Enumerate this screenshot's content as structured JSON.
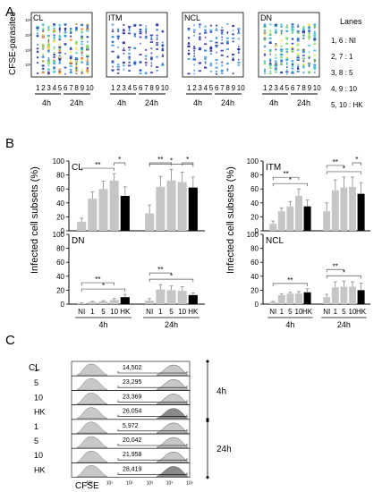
{
  "panel_a": {
    "letter": "A",
    "yaxis_label": "CFSE-parasites",
    "plots": [
      {
        "name": "CL"
      },
      {
        "name": "ITM"
      },
      {
        "name": "NCL"
      },
      {
        "name": "DN"
      }
    ],
    "lane_numbers": [
      "1",
      "2",
      "3",
      "4",
      "5",
      "6",
      "7",
      "8",
      "9",
      "10"
    ],
    "time_groups": [
      "4h",
      "24h"
    ],
    "lanes_title": "Lanes",
    "lanes_legend": [
      "1, 6 : NI",
      "2, 7 : 1",
      "3, 8 : 5",
      "4, 9 : 10",
      "5, 10 : HK"
    ],
    "tick_labels": [
      "10⁴",
      "10³",
      "10²",
      "10¹"
    ]
  },
  "panel_b": {
    "letter": "B",
    "ylabel": "Infected cell subsets (%)",
    "conditions": [
      "NI",
      "1",
      "5",
      "10",
      "HK"
    ],
    "time_groups": [
      "4h",
      "24h"
    ],
    "yticks": [
      "0",
      "20",
      "40",
      "60",
      "80",
      "100"
    ]
  },
  "panel_c": {
    "letter": "C",
    "cell_label": "CL",
    "xaxis_label": "CFSE",
    "axis_ticks": [
      "10⁰",
      "10¹",
      "10²",
      "10³",
      "10⁴",
      "10⁵"
    ],
    "time_groups": [
      "4h",
      "24h"
    ],
    "rows": [
      {
        "label": "1",
        "value": "14,502"
      },
      {
        "label": "5",
        "value": "23,295"
      },
      {
        "label": "10",
        "value": "23,369"
      },
      {
        "label": "HK",
        "value": "26,054"
      },
      {
        "label": "1",
        "value": "5,972"
      },
      {
        "label": "5",
        "value": "20,042"
      },
      {
        "label": "10",
        "value": "21,958"
      },
      {
        "label": "HK",
        "value": "28,419"
      }
    ]
  },
  "chart_data": [
    {
      "type": "bar",
      "title": "CL",
      "ylabel": "Infected cell subsets (%)",
      "categories": [
        "NI",
        "1",
        "5",
        "10",
        "HK"
      ],
      "ylim": [
        0,
        100
      ],
      "series": [
        {
          "name": "4h",
          "values": [
            13,
            46,
            60,
            72,
            50
          ],
          "errors": [
            5,
            10,
            11,
            10,
            13
          ]
        },
        {
          "name": "24h",
          "values": [
            25,
            63,
            72,
            70,
            62
          ],
          "errors": [
            12,
            15,
            16,
            14,
            15
          ]
        }
      ],
      "significance": [
        {
          "group": "4h",
          "from": "NI",
          "to": "10",
          "label": "**"
        },
        {
          "group": "4h",
          "from": "10",
          "to": "HK",
          "label": "*"
        },
        {
          "group": "24h",
          "from": "NI",
          "to": "HK",
          "label": "*"
        },
        {
          "group": "24h",
          "from": "NI",
          "to": "5",
          "label": "**"
        },
        {
          "group": "24h",
          "from": "10",
          "to": "HK",
          "label": "*"
        }
      ]
    },
    {
      "type": "bar",
      "title": "ITM",
      "ylabel": "Infected cell subsets (%)",
      "categories": [
        "NI",
        "1",
        "5",
        "10",
        "HK"
      ],
      "ylim": [
        0,
        100
      ],
      "series": [
        {
          "name": "4h",
          "values": [
            10,
            28,
            35,
            50,
            35
          ],
          "errors": [
            4,
            5,
            7,
            10,
            9
          ]
        },
        {
          "name": "24h",
          "values": [
            28,
            58,
            62,
            63,
            53
          ],
          "errors": [
            12,
            15,
            15,
            14,
            16
          ]
        }
      ],
      "significance": [
        {
          "group": "4h",
          "from": "NI",
          "to": "HK",
          "label": "*"
        },
        {
          "group": "4h",
          "from": "NI",
          "to": "10",
          "label": "**"
        },
        {
          "group": "24h",
          "from": "NI",
          "to": "HK",
          "label": "*"
        },
        {
          "group": "24h",
          "from": "NI",
          "to": "5",
          "label": "**"
        },
        {
          "group": "24h",
          "from": "10",
          "to": "HK",
          "label": "*"
        }
      ]
    },
    {
      "type": "bar",
      "title": "DN",
      "ylabel": "Infected cell subsets (%)",
      "categories": [
        "NI",
        "1",
        "5",
        "10",
        "HK"
      ],
      "ylim": [
        0,
        100
      ],
      "series": [
        {
          "name": "4h",
          "values": [
            1,
            3,
            4,
            6,
            10
          ],
          "errors": [
            1,
            1,
            1,
            2,
            4
          ]
        },
        {
          "name": "24h",
          "values": [
            5,
            21,
            20,
            19,
            13
          ],
          "errors": [
            3,
            7,
            6,
            6,
            3
          ]
        }
      ],
      "significance": [
        {
          "group": "4h",
          "from": "NI",
          "to": "HK",
          "label": "*"
        },
        {
          "group": "4h",
          "from": "NI",
          "to": "10",
          "label": "**"
        },
        {
          "group": "24h",
          "from": "NI",
          "to": "HK",
          "label": "*"
        },
        {
          "group": "24h",
          "from": "NI",
          "to": "5",
          "label": "**"
        }
      ]
    },
    {
      "type": "bar",
      "title": "NCL",
      "ylabel": "Infected cell subsets (%)",
      "categories": [
        "NI",
        "1",
        "5",
        "10",
        "HK"
      ],
      "ylim": [
        0,
        100
      ],
      "series": [
        {
          "name": "4h",
          "values": [
            3,
            13,
            15,
            15,
            17
          ],
          "errors": [
            1,
            2,
            2,
            3,
            5
          ]
        },
        {
          "name": "24h",
          "values": [
            10,
            24,
            25,
            25,
            20
          ],
          "errors": [
            4,
            8,
            8,
            7,
            10
          ]
        }
      ],
      "significance": [
        {
          "group": "4h",
          "from": "NI",
          "to": "HK",
          "label": "**"
        },
        {
          "group": "24h",
          "from": "NI",
          "to": "HK",
          "label": "*"
        },
        {
          "group": "24h",
          "from": "NI",
          "to": "5",
          "label": "**"
        }
      ]
    }
  ],
  "colors": {
    "bar_grey": "#c6c6c6",
    "bar_hk": "#000000",
    "hist_fill": "#c8c8c8",
    "hist_fill_hk": "#8a8a8a",
    "density": [
      "#2a2ca0",
      "#2e8ed8",
      "#3fc3c9",
      "#7bd65a",
      "#f0e44a",
      "#e07a2a"
    ]
  }
}
